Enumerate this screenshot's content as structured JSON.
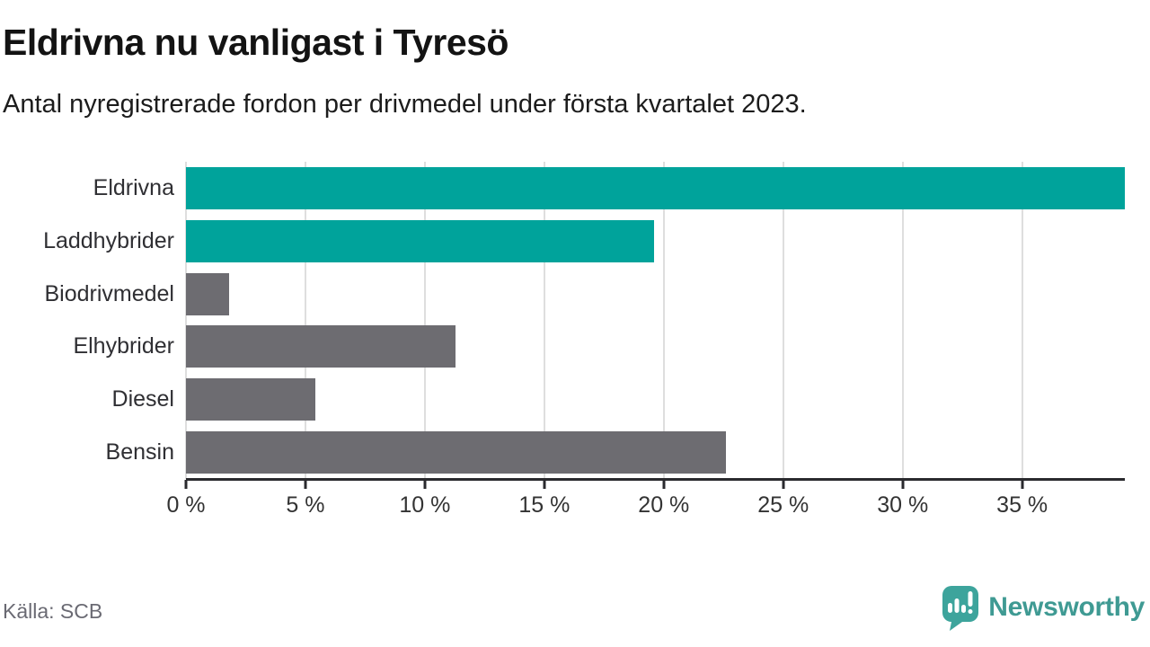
{
  "header": {
    "title": "Eldrivna nu vanligast i Tyresö",
    "subtitle": "Antal nyregistrerade fordon per drivmedel under första kvartalet 2023."
  },
  "chart_data": {
    "type": "bar",
    "orientation": "horizontal",
    "categories": [
      "Eldrivna",
      "Laddhybrider",
      "Biodrivmedel",
      "Elhybrider",
      "Diesel",
      "Bensin"
    ],
    "values": [
      39.3,
      19.6,
      1.8,
      11.3,
      5.4,
      22.6
    ],
    "unit": "%",
    "bar_colors": [
      "#00a39b",
      "#00a39b",
      "#6d6c71",
      "#6d6c71",
      "#6d6c71",
      "#6d6c71"
    ],
    "xlim": [
      0,
      39.3
    ],
    "xticks": [
      0,
      5,
      10,
      15,
      20,
      25,
      30,
      35
    ],
    "xtick_labels": [
      "0 %",
      "5 %",
      "10 %",
      "15 %",
      "20 %",
      "25 %",
      "30 %",
      "35 %"
    ],
    "grid": true,
    "legend_position": "none",
    "title": "Eldrivna nu vanligast i Tyresö",
    "xlabel": "",
    "ylabel": ""
  },
  "footer": {
    "source": "Källa: SCB",
    "brand": "Newsworthy"
  },
  "colors": {
    "accent_teal": "#00a39b",
    "bar_gray": "#6d6c71",
    "gridline": "#dedede",
    "axis": "#2a2a2e",
    "logo_teal": "#3da49c",
    "wordmark_teal": "#3f9a93",
    "muted_text": "#6a6a73"
  }
}
